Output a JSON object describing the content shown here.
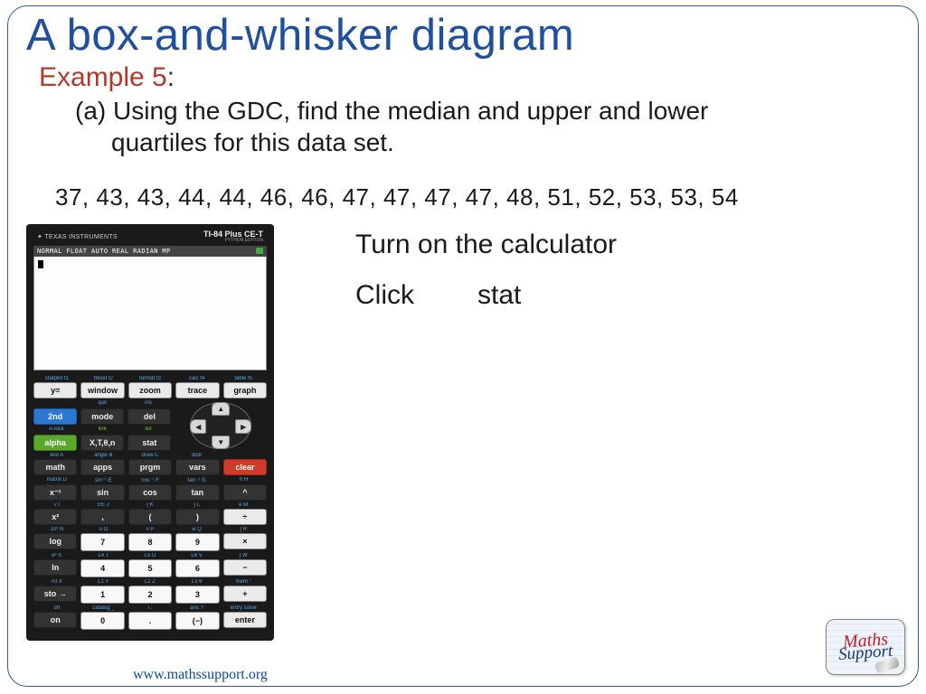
{
  "title": "A box-and-whisker diagram",
  "example": {
    "label": "Example 5",
    "colon": ":"
  },
  "question": {
    "part": "(a) ",
    "line1": "Using the GDC, find the median and upper and lower",
    "line2": "quartiles for this data set."
  },
  "data_set": "37, 43, 43, 44, 44, 46, 46, 47, 47, 47, 47, 48, 51, 52, 53, 53, 54",
  "instructions": {
    "line1": "Turn on the calculator",
    "line2a": "Click",
    "line2b": "stat"
  },
  "calculator": {
    "brand": "TEXAS INSTRUMENTS",
    "model": "TI-84 Plus CE-T",
    "sub": "PYTHON EDITION",
    "status": "NORMAL FLOAT AUTO REAL RADIAN MP",
    "sup_row1": [
      "statplot f1",
      "tblset  f2",
      "format f3",
      "calc  f4",
      "table  f5"
    ],
    "row1": [
      "y=",
      "window",
      "zoom",
      "trace",
      "graph"
    ],
    "sup_r2a": [
      "",
      "quit",
      "ins"
    ],
    "r2a": [
      "2nd",
      "mode",
      "del"
    ],
    "sup_r2b": [
      "A-lock",
      "link",
      "list"
    ],
    "r2b": [
      "alpha",
      "X,T,θ,n",
      "stat"
    ],
    "sup_r3": [
      "test  A",
      "angle B",
      "draw C",
      "distr",
      ""
    ],
    "r3": [
      "math",
      "apps",
      "prgm",
      "vars",
      "clear"
    ],
    "sup_r4": [
      "matrix D",
      "sin⁻¹ E",
      "cos⁻¹ F",
      "tan⁻¹ G",
      "π  H"
    ],
    "r4": [
      "x⁻¹",
      "sin",
      "cos",
      "tan",
      "^"
    ],
    "sup_r5": [
      "√  I",
      "EE  J",
      "{  K",
      "}  L",
      "e  M"
    ],
    "r5": [
      "x²",
      ",",
      "(",
      ")",
      "÷"
    ],
    "sup_r6": [
      "10ˣ N",
      "u  O",
      "v  P",
      "w  Q",
      "[  R"
    ],
    "r6": [
      "log",
      "7",
      "8",
      "9",
      "×"
    ],
    "sup_r7": [
      "eˣ  S",
      "L4  T",
      "L5  U",
      "L6  V",
      "]  W"
    ],
    "r7": [
      "ln",
      "4",
      "5",
      "6",
      "−"
    ],
    "sup_r8": [
      "rcl  X",
      "L1  Y",
      "L2  Z",
      "L3  θ",
      "mem \""
    ],
    "r8": [
      "sto →",
      "1",
      "2",
      "3",
      "+"
    ],
    "sup_r9": [
      "off",
      "catalog _",
      "i  :",
      "ans  ?",
      "entry solve"
    ],
    "r9": [
      "on",
      "0",
      ".",
      "(−)",
      "enter"
    ]
  },
  "footer": {
    "url": "www.mathssupport.org"
  },
  "logo": {
    "line1": "Maths",
    "line2": "Support"
  },
  "colors": {
    "title": "#1f4fa0",
    "example": "#b33a2a",
    "border": "#2a5aa5",
    "link": "#0b4aa0"
  }
}
